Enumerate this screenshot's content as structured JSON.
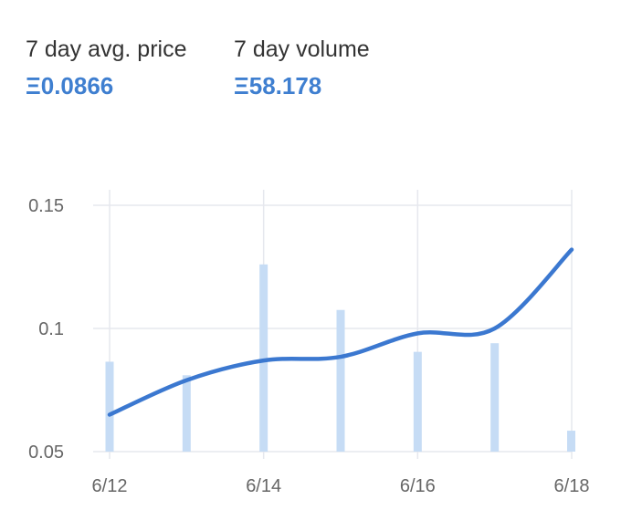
{
  "stats": {
    "avg_price": {
      "label": "7 day avg. price",
      "value": "Ξ0.0866"
    },
    "volume": {
      "label": "7 day volume",
      "value": "Ξ58.178"
    }
  },
  "colors": {
    "accent": "#3f7fd0",
    "line": "#3b78d0",
    "bar": "#c6dcf5",
    "grid": "#e6e8ee",
    "axis_text": "#666666",
    "label_text": "#333333"
  },
  "chart_data": {
    "type": "line",
    "x": [
      "6/12",
      "6/13",
      "6/14",
      "6/15",
      "6/16",
      "6/17",
      "6/18"
    ],
    "x_tick_labels": [
      "6/12",
      "6/14",
      "6/16",
      "6/18"
    ],
    "y_tick_labels": [
      "0.15",
      "0.1",
      "0.05"
    ],
    "y_ticks": [
      0.15,
      0.1,
      0.05
    ],
    "ylim": [
      0.05,
      0.15
    ],
    "grid": true,
    "series": [
      {
        "kind": "line",
        "values": [
          0.065,
          0.079,
          0.087,
          0.0885,
          0.098,
          0.1,
          0.132
        ]
      },
      {
        "kind": "bar",
        "values": [
          0.0865,
          0.081,
          0.126,
          0.1075,
          0.0905,
          0.094,
          0.0585
        ]
      }
    ]
  }
}
